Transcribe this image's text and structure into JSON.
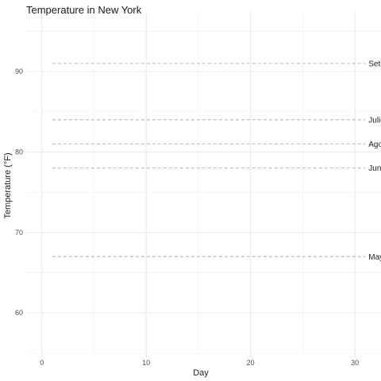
{
  "chart_data": {
    "type": "line",
    "title": "Temperature in New York",
    "xlabel": "Day",
    "ylabel": "Temperature (°F)",
    "xlim": [
      -1.5,
      32.5
    ],
    "ylim": [
      54.5,
      97.5
    ],
    "x_ticks": [
      0,
      10,
      20,
      30
    ],
    "y_ticks": [
      60,
      70,
      80,
      90
    ],
    "grid": true,
    "legend": "none",
    "series": [
      {
        "name": "Mayo",
        "x": [
          1,
          31
        ],
        "y": [
          67,
          67
        ]
      },
      {
        "name": "Junio",
        "x": [
          1,
          31
        ],
        "y": [
          78,
          78
        ]
      },
      {
        "name": "Agosto",
        "x": [
          1,
          31
        ],
        "y": [
          81,
          81
        ]
      },
      {
        "name": "Julio",
        "x": [
          1,
          31
        ],
        "y": [
          84,
          84
        ]
      },
      {
        "name": "Setiembre",
        "x": [
          1,
          31
        ],
        "y": [
          91,
          91
        ]
      }
    ]
  }
}
